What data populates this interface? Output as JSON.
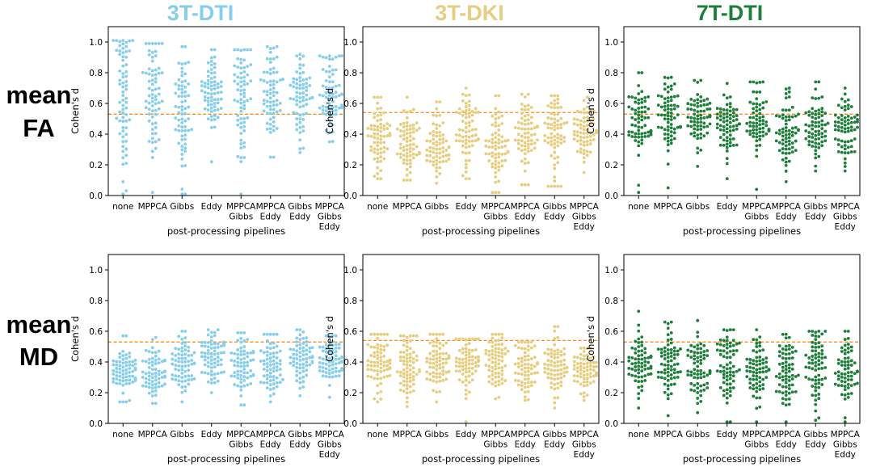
{
  "figure": {
    "column_titles": [
      "3T-DTI",
      "3T-DKI",
      "7T-DTI"
    ],
    "column_colors": [
      "#87ceeb",
      "#e6cd80",
      "#1e7f3a"
    ],
    "row_titles": [
      [
        "mean",
        "FA"
      ],
      [
        "mean",
        "MD"
      ]
    ],
    "reference_line_color": "#ff8c1a"
  },
  "chart_data": [
    {
      "type": "scatter",
      "subtype": "swarm",
      "panel": "3T-DTI mean FA",
      "row": 0,
      "col": 0,
      "color": "#87ceeb",
      "xlabel": "post-processing pipelines",
      "ylabel": "Cohen's d",
      "ylim": [
        0,
        1.1
      ],
      "yticks": [
        "0.0",
        "0.2",
        "0.4",
        "0.6",
        "0.8",
        "1.0"
      ],
      "categories": [
        [
          "none"
        ],
        [
          "MPPCA"
        ],
        [
          "Gibbs"
        ],
        [
          "Eddy"
        ],
        [
          "MPPCA",
          "Gibbs"
        ],
        [
          "MPPCA",
          "Eddy"
        ],
        [
          "Gibbs",
          "Eddy"
        ],
        [
          "MPPCA",
          "Gibbs",
          "Eddy"
        ]
      ],
      "reference_line": 0.53,
      "n_points": 70,
      "series": [
        {
          "min": 0.01,
          "max": 1.01,
          "center": 0.68,
          "spread": 0.26
        },
        {
          "min": 0.02,
          "max": 0.99,
          "center": 0.66,
          "spread": 0.25
        },
        {
          "min": 0.01,
          "max": 0.97,
          "center": 0.61,
          "spread": 0.24
        },
        {
          "min": 0.22,
          "max": 0.95,
          "center": 0.68,
          "spread": 0.13
        },
        {
          "min": 0.01,
          "max": 0.95,
          "center": 0.62,
          "spread": 0.24
        },
        {
          "min": 0.25,
          "max": 0.97,
          "center": 0.65,
          "spread": 0.14
        },
        {
          "min": 0.28,
          "max": 0.92,
          "center": 0.64,
          "spread": 0.14
        },
        {
          "min": 0.35,
          "max": 0.91,
          "center": 0.65,
          "spread": 0.12
        }
      ]
    },
    {
      "type": "scatter",
      "subtype": "swarm",
      "panel": "3T-DKI mean FA",
      "row": 0,
      "col": 1,
      "color": "#e6cd80",
      "xlabel": "post-processing pipelines",
      "ylabel": "Cohen's d",
      "ylim": [
        0,
        1.1
      ],
      "yticks": [
        "0.0",
        "0.2",
        "0.4",
        "0.6",
        "0.8",
        "1.0"
      ],
      "categories": [
        [
          "none"
        ],
        [
          "MPPCA"
        ],
        [
          "Gibbs"
        ],
        [
          "Eddy"
        ],
        [
          "MPPCA",
          "Gibbs"
        ],
        [
          "MPPCA",
          "Eddy"
        ],
        [
          "Gibbs",
          "Eddy"
        ],
        [
          "MPPCA",
          "Gibbs",
          "Eddy"
        ]
      ],
      "reference_line": 0.54,
      "n_points": 70,
      "series": [
        {
          "min": 0.11,
          "max": 0.64,
          "center": 0.35,
          "spread": 0.13
        },
        {
          "min": 0.1,
          "max": 0.64,
          "center": 0.35,
          "spread": 0.13
        },
        {
          "min": 0.08,
          "max": 0.61,
          "center": 0.32,
          "spread": 0.12
        },
        {
          "min": 0.11,
          "max": 0.7,
          "center": 0.42,
          "spread": 0.14
        },
        {
          "min": 0.02,
          "max": 0.65,
          "center": 0.33,
          "spread": 0.14
        },
        {
          "min": 0.07,
          "max": 0.66,
          "center": 0.38,
          "spread": 0.14
        },
        {
          "min": 0.06,
          "max": 0.65,
          "center": 0.4,
          "spread": 0.14
        },
        {
          "min": 0.15,
          "max": 0.64,
          "center": 0.4,
          "spread": 0.11
        }
      ]
    },
    {
      "type": "scatter",
      "subtype": "swarm",
      "panel": "7T-DTI mean FA",
      "row": 0,
      "col": 2,
      "color": "#1e7f3a",
      "xlabel": "post-processing pipelines",
      "ylabel": "Cohen's d",
      "ylim": [
        0,
        1.1
      ],
      "yticks": [
        "0.0",
        "0.2",
        "0.4",
        "0.6",
        "0.8",
        "1.0"
      ],
      "categories": [
        [
          "none"
        ],
        [
          "MPPCA"
        ],
        [
          "Gibbs"
        ],
        [
          "Eddy"
        ],
        [
          "MPPCA",
          "Gibbs"
        ],
        [
          "MPPCA",
          "Eddy"
        ],
        [
          "Gibbs",
          "Eddy"
        ],
        [
          "MPPCA",
          "Gibbs",
          "Eddy"
        ]
      ],
      "reference_line": 0.53,
      "n_points": 70,
      "series": [
        {
          "min": 0.02,
          "max": 0.8,
          "center": 0.52,
          "spread": 0.13
        },
        {
          "min": 0.05,
          "max": 0.77,
          "center": 0.52,
          "spread": 0.13
        },
        {
          "min": 0.19,
          "max": 0.75,
          "center": 0.51,
          "spread": 0.12
        },
        {
          "min": 0.11,
          "max": 0.73,
          "center": 0.45,
          "spread": 0.11
        },
        {
          "min": 0.04,
          "max": 0.74,
          "center": 0.48,
          "spread": 0.13
        },
        {
          "min": 0.09,
          "max": 0.7,
          "center": 0.42,
          "spread": 0.11
        },
        {
          "min": 0.16,
          "max": 0.74,
          "center": 0.46,
          "spread": 0.11
        },
        {
          "min": 0.16,
          "max": 0.7,
          "center": 0.43,
          "spread": 0.1
        }
      ]
    },
    {
      "type": "scatter",
      "subtype": "swarm",
      "panel": "3T-DTI mean MD",
      "row": 1,
      "col": 0,
      "color": "#87ceeb",
      "xlabel": "post-processing pipelines",
      "ylabel": "Cohen's d",
      "ylim": [
        0,
        1.1
      ],
      "yticks": [
        "0.0",
        "0.2",
        "0.4",
        "0.6",
        "0.8",
        "1.0"
      ],
      "categories": [
        [
          "none"
        ],
        [
          "MPPCA"
        ],
        [
          "Gibbs"
        ],
        [
          "Eddy"
        ],
        [
          "MPPCA",
          "Gibbs"
        ],
        [
          "MPPCA",
          "Eddy"
        ],
        [
          "Gibbs",
          "Eddy"
        ],
        [
          "MPPCA",
          "Gibbs",
          "Eddy"
        ]
      ],
      "reference_line": 0.53,
      "n_points": 70,
      "series": [
        {
          "min": 0.14,
          "max": 0.57,
          "center": 0.34,
          "spread": 0.09
        },
        {
          "min": 0.13,
          "max": 0.56,
          "center": 0.33,
          "spread": 0.09
        },
        {
          "min": 0.14,
          "max": 0.6,
          "center": 0.38,
          "spread": 0.1
        },
        {
          "min": 0.2,
          "max": 0.61,
          "center": 0.44,
          "spread": 0.09
        },
        {
          "min": 0.12,
          "max": 0.59,
          "center": 0.36,
          "spread": 0.1
        },
        {
          "min": 0.14,
          "max": 0.58,
          "center": 0.4,
          "spread": 0.1
        },
        {
          "min": 0.18,
          "max": 0.61,
          "center": 0.43,
          "spread": 0.1
        },
        {
          "min": 0.17,
          "max": 0.57,
          "center": 0.4,
          "spread": 0.09
        }
      ]
    },
    {
      "type": "scatter",
      "subtype": "swarm",
      "panel": "3T-DKI mean MD",
      "row": 1,
      "col": 1,
      "color": "#e6cd80",
      "xlabel": "post-processing pipelines",
      "ylabel": "Cohen's d",
      "ylim": [
        0,
        1.1
      ],
      "yticks": [
        "0.0",
        "0.2",
        "0.4",
        "0.6",
        "0.8",
        "1.0"
      ],
      "categories": [
        [
          "none"
        ],
        [
          "MPPCA"
        ],
        [
          "Gibbs"
        ],
        [
          "Eddy"
        ],
        [
          "MPPCA",
          "Gibbs"
        ],
        [
          "MPPCA",
          "Eddy"
        ],
        [
          "Gibbs",
          "Eddy"
        ],
        [
          "MPPCA",
          "Gibbs",
          "Eddy"
        ]
      ],
      "reference_line": 0.54,
      "n_points": 70,
      "series": [
        {
          "min": 0.14,
          "max": 0.58,
          "center": 0.38,
          "spread": 0.1
        },
        {
          "min": 0.11,
          "max": 0.57,
          "center": 0.38,
          "spread": 0.1
        },
        {
          "min": 0.14,
          "max": 0.58,
          "center": 0.4,
          "spread": 0.1
        },
        {
          "min": 0.01,
          "max": 0.55,
          "center": 0.39,
          "spread": 0.12
        },
        {
          "min": 0.16,
          "max": 0.58,
          "center": 0.4,
          "spread": 0.1
        },
        {
          "min": 0.15,
          "max": 0.53,
          "center": 0.36,
          "spread": 0.09
        },
        {
          "min": 0.1,
          "max": 0.63,
          "center": 0.38,
          "spread": 0.11
        },
        {
          "min": 0.15,
          "max": 0.49,
          "center": 0.35,
          "spread": 0.08
        }
      ]
    },
    {
      "type": "scatter",
      "subtype": "swarm",
      "panel": "7T-DTI mean MD",
      "row": 1,
      "col": 2,
      "color": "#1e7f3a",
      "xlabel": "post-processing pipelines",
      "ylabel": "Cohen's d",
      "ylim": [
        0,
        1.1
      ],
      "yticks": [
        "0.0",
        "0.2",
        "0.4",
        "0.6",
        "0.8",
        "1.0"
      ],
      "categories": [
        [
          "none"
        ],
        [
          "MPPCA"
        ],
        [
          "Gibbs"
        ],
        [
          "Eddy"
        ],
        [
          "MPPCA",
          "Gibbs"
        ],
        [
          "MPPCA",
          "Eddy"
        ],
        [
          "Gibbs",
          "Eddy"
        ],
        [
          "MPPCA",
          "Gibbs",
          "Eddy"
        ]
      ],
      "reference_line": 0.53,
      "n_points": 70,
      "series": [
        {
          "min": 0.1,
          "max": 0.73,
          "center": 0.4,
          "spread": 0.11
        },
        {
          "min": 0.05,
          "max": 0.66,
          "center": 0.38,
          "spread": 0.12
        },
        {
          "min": 0.07,
          "max": 0.67,
          "center": 0.38,
          "spread": 0.12
        },
        {
          "min": 0.01,
          "max": 0.61,
          "center": 0.38,
          "spread": 0.12
        },
        {
          "min": 0.01,
          "max": 0.61,
          "center": 0.36,
          "spread": 0.12
        },
        {
          "min": 0.01,
          "max": 0.58,
          "center": 0.34,
          "spread": 0.11
        },
        {
          "min": 0.02,
          "max": 0.6,
          "center": 0.37,
          "spread": 0.12
        },
        {
          "min": 0.01,
          "max": 0.6,
          "center": 0.33,
          "spread": 0.12
        }
      ]
    }
  ]
}
